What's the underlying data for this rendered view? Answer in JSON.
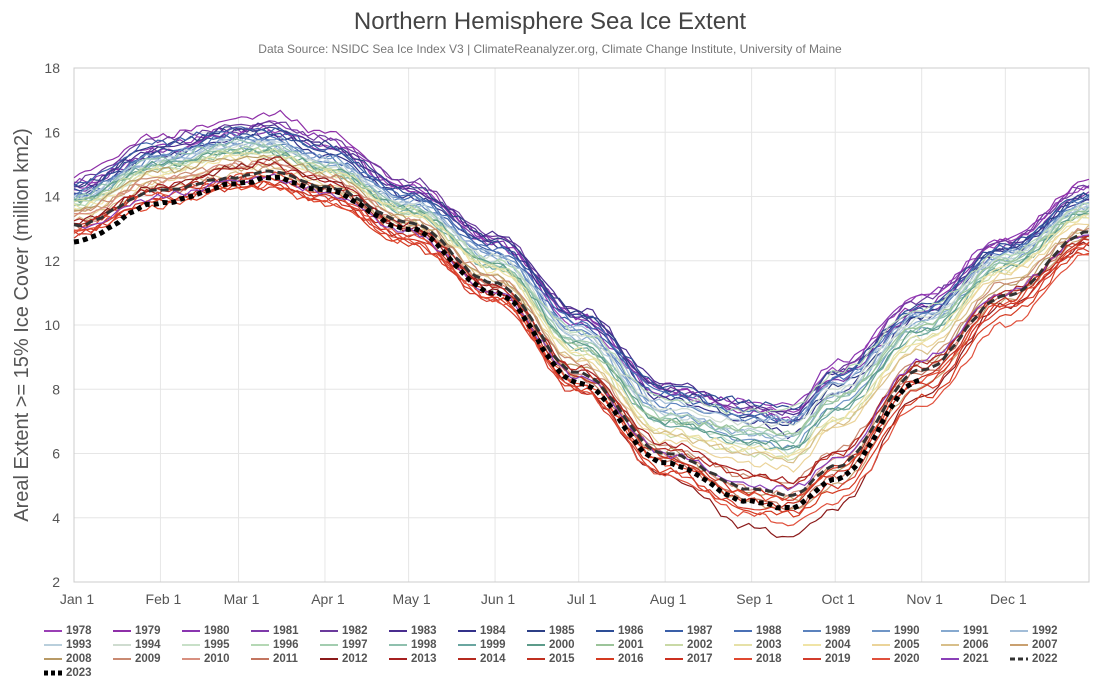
{
  "chart_data": {
    "type": "line",
    "title": "Northern Hemisphere Sea Ice Extent",
    "subtitle": "Data Source: NSIDC Sea Ice Index V3 | ClimateReanalyzer.org, Climate Change Institute, University of Maine",
    "xlabel": "",
    "ylabel": "Areal Extent >= 15% Ice Cover (million km2)",
    "ylim": [
      2,
      18
    ],
    "yticks": [
      "2",
      "4",
      "6",
      "8",
      "10",
      "12",
      "14",
      "16",
      "18"
    ],
    "xlim": [
      1,
      365
    ],
    "xticks": [
      {
        "label": "Jan 1",
        "day": 1
      },
      {
        "label": "Feb 1",
        "day": 32
      },
      {
        "label": "Mar 1",
        "day": 60
      },
      {
        "label": "Apr 1",
        "day": 91
      },
      {
        "label": "May 1",
        "day": 121
      },
      {
        "label": "Jun 1",
        "day": 152
      },
      {
        "label": "Jul 1",
        "day": 182
      },
      {
        "label": "Aug 1",
        "day": 213
      },
      {
        "label": "Sep 1",
        "day": 244
      },
      {
        "label": "Oct 1",
        "day": 274
      },
      {
        "label": "Nov 1",
        "day": 305
      },
      {
        "label": "Dec 1",
        "day": 335
      }
    ],
    "anchor_days": [
      1,
      32,
      60,
      71,
      91,
      121,
      152,
      182,
      213,
      244,
      258,
      274,
      305,
      335,
      365
    ],
    "grid": true,
    "legend_position": "bottom",
    "series": [
      {
        "name": "1978",
        "color": "#9a3fb5",
        "style": "solid",
        "values": [
          14.3,
          15.4,
          16.0,
          16.1,
          15.6,
          14.2,
          12.5,
          10.0,
          7.8,
          7.4,
          7.3,
          8.6,
          10.9,
          12.6,
          14.3
        ]
      },
      {
        "name": "1979",
        "color": "#8e2fa8",
        "style": "solid",
        "values": [
          14.7,
          15.9,
          16.4,
          16.6,
          16.0,
          14.4,
          12.6,
          10.2,
          8.1,
          7.3,
          7.1,
          8.4,
          10.6,
          12.6,
          14.5
        ]
      },
      {
        "name": "1980",
        "color": "#8a35b0",
        "style": "solid",
        "values": [
          14.4,
          15.6,
          16.1,
          16.3,
          15.8,
          14.3,
          12.7,
          10.3,
          8.0,
          7.6,
          7.5,
          8.8,
          10.9,
          12.7,
          14.3
        ]
      },
      {
        "name": "1981",
        "color": "#7e3aaa",
        "style": "solid",
        "values": [
          14.2,
          15.4,
          16.0,
          16.0,
          15.5,
          14.2,
          12.6,
          10.3,
          7.8,
          7.3,
          7.0,
          8.3,
          10.4,
          12.4,
          14.1
        ]
      },
      {
        "name": "1982",
        "color": "#6b3a9c",
        "style": "solid",
        "values": [
          14.5,
          15.8,
          16.2,
          16.3,
          15.8,
          14.5,
          12.8,
          10.4,
          8.0,
          7.4,
          7.3,
          8.6,
          10.8,
          12.6,
          14.3
        ]
      },
      {
        "name": "1983",
        "color": "#4a2d8f",
        "style": "solid",
        "values": [
          14.3,
          15.5,
          16.1,
          16.2,
          15.6,
          14.2,
          12.8,
          10.5,
          8.2,
          7.5,
          7.2,
          8.5,
          10.5,
          12.4,
          14.0
        ]
      },
      {
        "name": "1984",
        "color": "#33318a",
        "style": "solid",
        "values": [
          14.1,
          15.3,
          15.8,
          15.9,
          15.3,
          14.0,
          12.5,
          10.2,
          7.7,
          7.0,
          6.6,
          7.9,
          10.2,
          12.3,
          13.9
        ]
      },
      {
        "name": "1985",
        "color": "#2c3f86",
        "style": "solid",
        "values": [
          14.3,
          15.6,
          16.1,
          16.1,
          15.6,
          14.3,
          12.7,
          10.4,
          8.0,
          7.1,
          6.9,
          8.1,
          10.3,
          12.4,
          14.0
        ]
      },
      {
        "name": "1986",
        "color": "#2d4d96",
        "style": "solid",
        "values": [
          14.2,
          15.4,
          15.9,
          16.0,
          15.4,
          14.1,
          12.5,
          10.3,
          8.1,
          7.6,
          7.4,
          8.5,
          10.6,
          12.5,
          14.1
        ]
      },
      {
        "name": "1987",
        "color": "#3a5fa8",
        "style": "solid",
        "values": [
          14.4,
          15.7,
          16.1,
          16.1,
          15.5,
          14.0,
          12.3,
          10.0,
          7.8,
          7.2,
          7.0,
          8.4,
          10.5,
          12.4,
          14.0
        ]
      },
      {
        "name": "1988",
        "color": "#4a70b5",
        "style": "solid",
        "values": [
          14.0,
          15.3,
          15.9,
          15.8,
          15.2,
          14.0,
          12.4,
          10.1,
          7.9,
          7.3,
          7.0,
          8.3,
          10.4,
          12.3,
          13.9
        ]
      },
      {
        "name": "1989",
        "color": "#5b82bd",
        "style": "solid",
        "values": [
          14.0,
          15.2,
          15.7,
          15.7,
          15.1,
          13.8,
          12.2,
          9.8,
          7.5,
          7.1,
          7.0,
          8.2,
          10.3,
          12.2,
          13.8
        ]
      },
      {
        "name": "1990",
        "color": "#6f95c6",
        "style": "solid",
        "values": [
          14.1,
          15.3,
          15.8,
          15.8,
          15.2,
          13.9,
          12.2,
          9.8,
          7.3,
          6.4,
          6.2,
          7.5,
          9.9,
          12.0,
          13.8
        ]
      },
      {
        "name": "1991",
        "color": "#86a9cf",
        "style": "solid",
        "values": [
          13.9,
          15.1,
          15.6,
          15.6,
          15.0,
          13.7,
          12.1,
          9.6,
          7.3,
          6.6,
          6.5,
          7.8,
          10.1,
          12.1,
          13.7
        ]
      },
      {
        "name": "1992",
        "color": "#a2bdd8",
        "style": "solid",
        "values": [
          13.9,
          15.1,
          15.6,
          15.6,
          15.1,
          13.8,
          12.2,
          9.9,
          7.6,
          7.0,
          7.1,
          8.2,
          10.3,
          12.2,
          13.7
        ]
      },
      {
        "name": "1993",
        "color": "#b9cfdc",
        "style": "solid",
        "values": [
          14.0,
          15.2,
          15.7,
          15.7,
          15.1,
          13.8,
          12.0,
          9.6,
          7.2,
          6.7,
          6.5,
          7.9,
          10.1,
          12.1,
          13.7
        ]
      },
      {
        "name": "1994",
        "color": "#cfdcd0",
        "style": "solid",
        "values": [
          13.9,
          15.0,
          15.6,
          15.6,
          15.0,
          13.7,
          12.1,
          9.7,
          7.4,
          6.9,
          6.9,
          8.0,
          10.2,
          12.1,
          13.7
        ]
      },
      {
        "name": "1995",
        "color": "#c8e0c8",
        "style": "solid",
        "values": [
          13.6,
          14.8,
          15.3,
          15.3,
          14.8,
          13.5,
          11.9,
          9.4,
          7.0,
          6.3,
          6.1,
          7.4,
          9.8,
          11.9,
          13.5
        ]
      },
      {
        "name": "1996",
        "color": "#b5d8b5",
        "style": "solid",
        "values": [
          13.7,
          14.9,
          15.4,
          15.4,
          14.8,
          13.6,
          12.0,
          9.8,
          7.7,
          7.3,
          7.4,
          8.5,
          10.5,
          12.2,
          13.7
        ]
      },
      {
        "name": "1997",
        "color": "#a3cdb0",
        "style": "solid",
        "values": [
          13.9,
          15.0,
          15.5,
          15.5,
          14.9,
          13.6,
          11.9,
          9.5,
          7.2,
          6.7,
          6.6,
          7.8,
          10.0,
          12.0,
          13.6
        ]
      },
      {
        "name": "1998",
        "color": "#8fc0ae",
        "style": "solid",
        "values": [
          14.0,
          15.2,
          15.7,
          15.6,
          15.0,
          13.7,
          11.9,
          9.4,
          7.0,
          6.6,
          6.4,
          7.7,
          9.9,
          11.9,
          13.6
        ]
      },
      {
        "name": "1999",
        "color": "#6aa6a0",
        "style": "solid",
        "values": [
          13.8,
          15.0,
          15.4,
          15.4,
          14.8,
          13.5,
          11.8,
          9.3,
          6.9,
          6.3,
          6.1,
          7.3,
          9.7,
          11.8,
          13.5
        ]
      },
      {
        "name": "2000",
        "color": "#5c9b8a",
        "style": "solid",
        "values": [
          13.9,
          15.0,
          15.4,
          15.4,
          14.9,
          13.6,
          11.9,
          9.4,
          7.0,
          6.4,
          6.2,
          7.4,
          9.8,
          11.8,
          13.5
        ]
      },
      {
        "name": "2001",
        "color": "#9cc49a",
        "style": "solid",
        "values": [
          13.8,
          14.9,
          15.4,
          15.4,
          14.8,
          13.5,
          11.8,
          9.3,
          7.0,
          6.8,
          6.6,
          7.7,
          10.0,
          12.0,
          13.5
        ]
      },
      {
        "name": "2002",
        "color": "#c9d9a6",
        "style": "solid",
        "values": [
          13.8,
          14.9,
          15.4,
          15.4,
          14.9,
          13.6,
          11.8,
          9.1,
          6.6,
          6.0,
          5.8,
          7.0,
          9.5,
          11.7,
          13.4
        ]
      },
      {
        "name": "2003",
        "color": "#e6e1a8",
        "style": "solid",
        "values": [
          13.7,
          14.8,
          15.3,
          15.3,
          14.8,
          13.5,
          11.8,
          9.2,
          6.7,
          6.2,
          6.0,
          7.1,
          9.6,
          11.8,
          13.4
        ]
      },
      {
        "name": "2004",
        "color": "#f0e4a6",
        "style": "solid",
        "values": [
          13.6,
          14.7,
          15.2,
          15.2,
          14.7,
          13.4,
          11.7,
          9.1,
          6.6,
          6.1,
          5.9,
          7.0,
          9.5,
          11.7,
          13.3
        ]
      },
      {
        "name": "2005",
        "color": "#ebd49a",
        "style": "solid",
        "values": [
          13.4,
          14.5,
          14.9,
          14.9,
          14.4,
          13.2,
          11.5,
          8.9,
          6.4,
          5.7,
          5.5,
          6.8,
          9.3,
          11.6,
          13.2
        ]
      },
      {
        "name": "2006",
        "color": "#d8bf8a",
        "style": "solid",
        "values": [
          13.3,
          14.3,
          14.7,
          14.7,
          14.2,
          13.1,
          11.4,
          8.9,
          6.6,
          6.0,
          5.8,
          6.9,
          9.2,
          11.4,
          13.0
        ]
      },
      {
        "name": "2007",
        "color": "#c9a070",
        "style": "solid",
        "values": [
          13.5,
          14.5,
          14.9,
          14.9,
          14.3,
          13.1,
          11.3,
          8.4,
          5.9,
          4.5,
          4.2,
          5.0,
          8.1,
          10.8,
          12.7
        ]
      },
      {
        "name": "2008",
        "color": "#b89a66",
        "style": "solid",
        "values": [
          13.6,
          14.8,
          15.2,
          15.2,
          14.7,
          13.3,
          11.5,
          8.7,
          6.1,
          4.8,
          4.6,
          5.5,
          8.8,
          11.2,
          13.0
        ]
      },
      {
        "name": "2009",
        "color": "#c98a72",
        "style": "solid",
        "values": [
          13.5,
          14.6,
          15.0,
          15.0,
          14.6,
          13.3,
          11.5,
          8.8,
          6.2,
          5.3,
          5.1,
          6.1,
          8.9,
          11.3,
          13.0
        ]
      },
      {
        "name": "2010",
        "color": "#d89080",
        "style": "solid",
        "values": [
          13.4,
          14.5,
          15.0,
          15.1,
          14.6,
          13.2,
          11.2,
          8.5,
          6.0,
          4.9,
          4.7,
          5.8,
          8.6,
          11.0,
          12.8
        ]
      },
      {
        "name": "2011",
        "color": "#c37560",
        "style": "solid",
        "values": [
          13.1,
          14.2,
          14.6,
          14.6,
          14.2,
          13.0,
          11.2,
          8.3,
          5.8,
          4.6,
          4.3,
          5.3,
          8.5,
          10.9,
          12.7
        ]
      },
      {
        "name": "2012",
        "color": "#8b1a1a",
        "style": "solid",
        "values": [
          13.2,
          14.3,
          14.9,
          15.2,
          14.5,
          13.0,
          11.1,
          8.0,
          5.3,
          3.7,
          3.4,
          4.3,
          7.8,
          10.6,
          12.5
        ]
      },
      {
        "name": "2013",
        "color": "#a62020",
        "style": "solid",
        "values": [
          13.2,
          14.3,
          14.9,
          15.0,
          14.5,
          13.1,
          11.2,
          8.6,
          6.3,
          5.4,
          5.1,
          6.0,
          8.8,
          11.0,
          12.8
        ]
      },
      {
        "name": "2014",
        "color": "#b52a1f",
        "style": "solid",
        "values": [
          13.1,
          14.2,
          14.6,
          14.8,
          14.3,
          13.0,
          11.2,
          8.6,
          6.1,
          5.3,
          5.0,
          6.0,
          8.7,
          11.0,
          12.7
        ]
      },
      {
        "name": "2015",
        "color": "#c03020",
        "style": "solid",
        "values": [
          13.1,
          14.2,
          14.4,
          14.4,
          14.0,
          12.8,
          11.0,
          8.4,
          5.9,
          4.5,
          4.4,
          5.6,
          8.4,
          10.8,
          12.6
        ]
      },
      {
        "name": "2016",
        "color": "#d43a20",
        "style": "solid",
        "values": [
          12.9,
          13.9,
          14.3,
          14.4,
          13.8,
          12.5,
          10.8,
          8.0,
          5.5,
          4.2,
          4.1,
          4.8,
          7.7,
          10.3,
          12.3
        ]
      },
      {
        "name": "2017",
        "color": "#cc3020",
        "style": "solid",
        "values": [
          12.8,
          13.9,
          14.3,
          14.3,
          13.9,
          12.7,
          10.9,
          8.1,
          5.8,
          4.8,
          4.6,
          5.4,
          8.2,
          10.6,
          12.5
        ]
      },
      {
        "name": "2018",
        "color": "#e04830",
        "style": "solid",
        "values": [
          12.9,
          13.7,
          14.3,
          14.3,
          13.8,
          12.6,
          10.8,
          8.2,
          5.7,
          4.7,
          4.6,
          5.5,
          8.3,
          10.7,
          12.5
        ]
      },
      {
        "name": "2019",
        "color": "#d23c2c",
        "style": "solid",
        "values": [
          12.9,
          13.9,
          14.5,
          14.6,
          14.0,
          12.6,
          10.7,
          7.9,
          5.4,
          4.3,
          4.2,
          5.0,
          8.0,
          10.5,
          12.4
        ]
      },
      {
        "name": "2020",
        "color": "#e0503c",
        "style": "solid",
        "values": [
          13.0,
          14.1,
          14.6,
          14.7,
          14.1,
          12.8,
          10.8,
          8.0,
          5.3,
          4.1,
          3.8,
          4.5,
          7.5,
          10.0,
          12.2
        ]
      },
      {
        "name": "2021",
        "color": "#8a3fb8",
        "style": "solid",
        "values": [
          13.0,
          14.0,
          14.5,
          14.6,
          14.1,
          12.9,
          11.0,
          8.4,
          6.0,
          5.0,
          4.9,
          5.8,
          8.9,
          11.0,
          12.8
        ]
      },
      {
        "name": "2022",
        "color": "#333333",
        "style": "dashed",
        "values": [
          13.1,
          14.2,
          14.6,
          14.8,
          14.3,
          13.2,
          11.3,
          8.5,
          6.0,
          4.9,
          4.7,
          5.6,
          8.6,
          10.9,
          12.9
        ]
      },
      {
        "name": "2023",
        "color": "#000000",
        "style": "dotted",
        "values": [
          12.6,
          13.8,
          14.4,
          14.6,
          14.2,
          13.0,
          11.0,
          8.2,
          5.7,
          4.5,
          4.3,
          5.2,
          8.3,
          null,
          null
        ]
      }
    ]
  }
}
